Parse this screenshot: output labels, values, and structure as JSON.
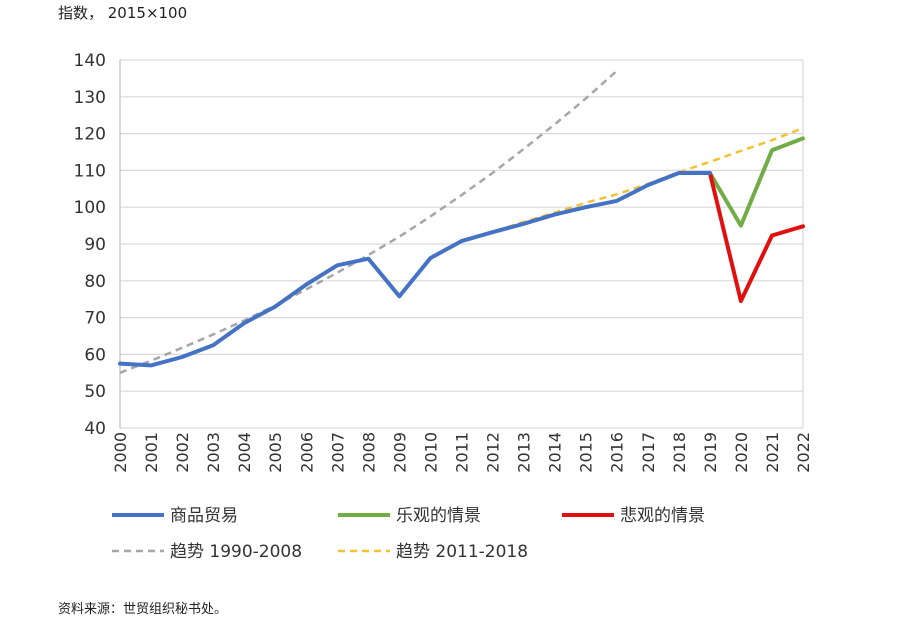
{
  "header": {
    "unit_label": "指数， 2015×100"
  },
  "footer": {
    "source": "资料来源：世贸组织秘书处。"
  },
  "chart_data": {
    "type": "line",
    "title": "",
    "xlabel": "",
    "ylabel": "",
    "categories": [
      "2000",
      "2001",
      "2002",
      "2003",
      "2004",
      "2005",
      "2006",
      "2007",
      "2008",
      "2009",
      "2010",
      "2011",
      "2012",
      "2013",
      "2014",
      "2015",
      "2016",
      "2017",
      "2018",
      "2019",
      "2020",
      "2021",
      "2022"
    ],
    "ylim": [
      40,
      140
    ],
    "yticks": [
      40,
      50,
      60,
      70,
      80,
      90,
      100,
      110,
      120,
      130,
      140
    ],
    "grid": true,
    "legend_position": "bottom",
    "series": [
      {
        "name": "商品贸易",
        "color": "#4472c4",
        "style": "solid",
        "points": [
          [
            "2000",
            57.5
          ],
          [
            "2001",
            57
          ],
          [
            "2002",
            59.3
          ],
          [
            "2003",
            62.5
          ],
          [
            "2004",
            68.5
          ],
          [
            "2005",
            73
          ],
          [
            "2006",
            79
          ],
          [
            "2007",
            84.2
          ],
          [
            "2008",
            86
          ],
          [
            "2009",
            75.8
          ],
          [
            "2010",
            86.2
          ],
          [
            "2011",
            90.8
          ],
          [
            "2012",
            93.2
          ],
          [
            "2013",
            95.5
          ],
          [
            "2014",
            98
          ],
          [
            "2015",
            100
          ],
          [
            "2016",
            101.7
          ],
          [
            "2017",
            106
          ],
          [
            "2018",
            109.3
          ],
          [
            "2019",
            109.3
          ]
        ]
      },
      {
        "name": "乐观的情景",
        "color": "#70ad47",
        "style": "solid",
        "points": [
          [
            "2019",
            109.3
          ],
          [
            "2020",
            95
          ],
          [
            "2021",
            115.5
          ],
          [
            "2022",
            118.7
          ]
        ]
      },
      {
        "name": "悲观的情景",
        "color": "#e01010",
        "style": "solid",
        "points": [
          [
            "2019",
            109.3
          ],
          [
            "2020",
            74.5
          ],
          [
            "2021",
            92.3
          ],
          [
            "2022",
            94.8
          ]
        ]
      },
      {
        "name": "趋势 1990-2008",
        "color": "#a6a6a6",
        "style": "dashed",
        "points": [
          [
            "2000",
            55
          ],
          [
            "2001",
            58.3
          ],
          [
            "2002",
            61.8
          ],
          [
            "2003",
            65.4
          ],
          [
            "2004",
            69.2
          ],
          [
            "2005",
            73.3
          ],
          [
            "2006",
            77.7
          ],
          [
            "2007",
            82.2
          ],
          [
            "2008",
            87
          ],
          [
            "2009",
            92
          ],
          [
            "2010",
            97.5
          ],
          [
            "2011",
            103.3
          ],
          [
            "2012",
            109.3
          ],
          [
            "2013",
            115.8
          ],
          [
            "2014",
            122.5
          ],
          [
            "2015",
            129.5
          ],
          [
            "2016",
            137
          ]
        ]
      },
      {
        "name": "趋势 2011-2018",
        "color": "#f2c230",
        "style": "dashed",
        "points": [
          [
            "2011",
            91
          ],
          [
            "2012",
            93.3
          ],
          [
            "2013",
            96
          ],
          [
            "2014",
            98.5
          ],
          [
            "2015",
            101.2
          ],
          [
            "2016",
            103.5
          ],
          [
            "2017",
            106.3
          ],
          [
            "2018",
            109.5
          ],
          [
            "2019",
            112.3
          ],
          [
            "2020",
            115.3
          ],
          [
            "2021",
            118.2
          ],
          [
            "2022",
            121.5
          ]
        ]
      }
    ],
    "legend_rows": [
      [
        "商品贸易",
        "乐观的情景",
        "悲观的情景"
      ],
      [
        "趋势 1990-2008",
        "趋势 2011-2018"
      ]
    ]
  }
}
